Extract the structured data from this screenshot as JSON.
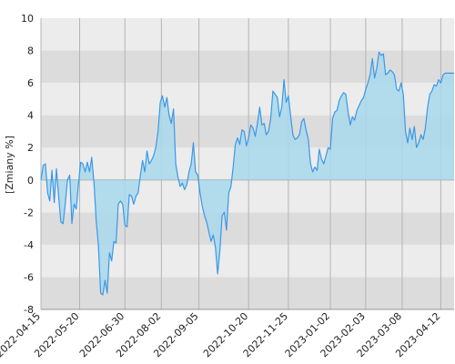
{
  "chart_data": {
    "type": "area",
    "ylabel": "[Zmiany %]",
    "ylim": [
      -8,
      10
    ],
    "yticks": [
      -8,
      -6,
      -4,
      -2,
      0,
      2,
      4,
      6,
      8,
      10
    ],
    "x_range": [
      "2022-04-15",
      "2023-04-24"
    ],
    "xtick_labels": [
      "2022-04-15",
      "2022-05-20",
      "2022-06-30",
      "2022-08-02",
      "2022-09-05",
      "2022-10-20",
      "2022-11-25",
      "2023-01-02",
      "2023-02-03",
      "2023-03-08",
      "2023-04-12"
    ],
    "grid": true,
    "line_color": "#3a98e8",
    "fill_color": "#a8d8ec",
    "band_colors": [
      "#ececec",
      "#dcdcdc"
    ],
    "series": [
      {
        "points": [
          [
            "2022-04-15",
            0.0
          ],
          [
            "2022-04-17",
            0.9
          ],
          [
            "2022-04-19",
            1.0
          ],
          [
            "2022-04-21",
            -0.8
          ],
          [
            "2022-04-23",
            -1.3
          ],
          [
            "2022-04-25",
            0.6
          ],
          [
            "2022-04-27",
            -1.4
          ],
          [
            "2022-04-29",
            0.7
          ],
          [
            "2022-05-01",
            -1.0
          ],
          [
            "2022-05-03",
            -2.6
          ],
          [
            "2022-05-05",
            -2.7
          ],
          [
            "2022-05-07",
            -1.5
          ],
          [
            "2022-05-09",
            0.0
          ],
          [
            "2022-05-11",
            0.3
          ],
          [
            "2022-05-13",
            -2.7
          ],
          [
            "2022-05-15",
            -1.5
          ],
          [
            "2022-05-17",
            -1.8
          ],
          [
            "2022-05-19",
            -0.2
          ],
          [
            "2022-05-21",
            1.1
          ],
          [
            "2022-05-23",
            1.0
          ],
          [
            "2022-05-25",
            0.5
          ],
          [
            "2022-05-27",
            1.1
          ],
          [
            "2022-05-29",
            0.5
          ],
          [
            "2022-05-31",
            1.4
          ],
          [
            "2022-06-02",
            -0.2
          ],
          [
            "2022-06-04",
            -2.5
          ],
          [
            "2022-06-06",
            -4.0
          ],
          [
            "2022-06-08",
            -7.0
          ],
          [
            "2022-06-10",
            -7.1
          ],
          [
            "2022-06-12",
            -6.2
          ],
          [
            "2022-06-14",
            -7.0
          ],
          [
            "2022-06-16",
            -4.5
          ],
          [
            "2022-06-18",
            -5.0
          ],
          [
            "2022-06-20",
            -3.8
          ],
          [
            "2022-06-22",
            -3.9
          ],
          [
            "2022-06-24",
            -1.5
          ],
          [
            "2022-06-26",
            -1.3
          ],
          [
            "2022-06-28",
            -1.5
          ],
          [
            "2022-06-30",
            -2.8
          ],
          [
            "2022-07-02",
            -2.9
          ],
          [
            "2022-07-04",
            -0.9
          ],
          [
            "2022-07-06",
            -1.0
          ],
          [
            "2022-07-08",
            -1.5
          ],
          [
            "2022-07-10",
            -1.0
          ],
          [
            "2022-07-12",
            -0.8
          ],
          [
            "2022-07-14",
            0.3
          ],
          [
            "2022-07-16",
            1.2
          ],
          [
            "2022-07-18",
            0.5
          ],
          [
            "2022-07-20",
            1.8
          ],
          [
            "2022-07-22",
            1.0
          ],
          [
            "2022-07-24",
            1.2
          ],
          [
            "2022-07-26",
            1.5
          ],
          [
            "2022-07-28",
            2.0
          ],
          [
            "2022-07-30",
            3.0
          ],
          [
            "2022-08-01",
            4.8
          ],
          [
            "2022-08-03",
            5.2
          ],
          [
            "2022-08-05",
            4.5
          ],
          [
            "2022-08-07",
            5.1
          ],
          [
            "2022-08-09",
            4.0
          ],
          [
            "2022-08-11",
            3.5
          ],
          [
            "2022-08-13",
            4.4
          ],
          [
            "2022-08-15",
            1.0
          ],
          [
            "2022-08-17",
            0.2
          ],
          [
            "2022-08-19",
            -0.4
          ],
          [
            "2022-08-21",
            -0.2
          ],
          [
            "2022-08-23",
            -0.6
          ],
          [
            "2022-08-25",
            -0.3
          ],
          [
            "2022-08-27",
            0.5
          ],
          [
            "2022-08-29",
            1.0
          ],
          [
            "2022-08-31",
            2.3
          ],
          [
            "2022-09-02",
            0.5
          ],
          [
            "2022-09-04",
            0.3
          ],
          [
            "2022-09-06",
            -0.8
          ],
          [
            "2022-09-08",
            -1.6
          ],
          [
            "2022-09-10",
            -2.2
          ],
          [
            "2022-09-12",
            -2.6
          ],
          [
            "2022-09-14",
            -3.2
          ],
          [
            "2022-09-16",
            -3.8
          ],
          [
            "2022-09-18",
            -3.4
          ],
          [
            "2022-09-20",
            -4.2
          ],
          [
            "2022-09-22",
            -5.8
          ],
          [
            "2022-09-24",
            -4.3
          ],
          [
            "2022-09-26",
            -2.2
          ],
          [
            "2022-09-28",
            -2.0
          ],
          [
            "2022-09-30",
            -3.1
          ],
          [
            "2022-10-02",
            -0.8
          ],
          [
            "2022-10-04",
            -0.4
          ],
          [
            "2022-10-06",
            0.8
          ],
          [
            "2022-10-08",
            2.2
          ],
          [
            "2022-10-10",
            2.6
          ],
          [
            "2022-10-12",
            2.2
          ],
          [
            "2022-10-14",
            3.1
          ],
          [
            "2022-10-16",
            3.0
          ],
          [
            "2022-10-18",
            2.1
          ],
          [
            "2022-10-20",
            2.6
          ],
          [
            "2022-10-22",
            3.4
          ],
          [
            "2022-10-24",
            3.2
          ],
          [
            "2022-10-26",
            2.7
          ],
          [
            "2022-10-28",
            3.5
          ],
          [
            "2022-10-30",
            4.5
          ],
          [
            "2022-11-01",
            3.4
          ],
          [
            "2022-11-03",
            3.5
          ],
          [
            "2022-11-05",
            2.8
          ],
          [
            "2022-11-07",
            3.0
          ],
          [
            "2022-11-09",
            3.8
          ],
          [
            "2022-11-11",
            5.5
          ],
          [
            "2022-11-13",
            5.3
          ],
          [
            "2022-11-15",
            5.1
          ],
          [
            "2022-11-17",
            3.9
          ],
          [
            "2022-11-19",
            4.5
          ],
          [
            "2022-11-21",
            6.2
          ],
          [
            "2022-11-23",
            4.8
          ],
          [
            "2022-11-25",
            5.2
          ],
          [
            "2022-11-27",
            4.0
          ],
          [
            "2022-11-29",
            2.8
          ],
          [
            "2022-12-01",
            2.5
          ],
          [
            "2022-12-03",
            2.6
          ],
          [
            "2022-12-05",
            2.8
          ],
          [
            "2022-12-07",
            3.6
          ],
          [
            "2022-12-09",
            3.8
          ],
          [
            "2022-12-11",
            3.1
          ],
          [
            "2022-12-13",
            2.5
          ],
          [
            "2022-12-15",
            1.0
          ],
          [
            "2022-12-17",
            0.5
          ],
          [
            "2022-12-19",
            0.8
          ],
          [
            "2022-12-21",
            0.6
          ],
          [
            "2022-12-23",
            1.9
          ],
          [
            "2022-12-25",
            1.3
          ],
          [
            "2022-12-27",
            1.0
          ],
          [
            "2022-12-29",
            1.5
          ],
          [
            "2022-12-31",
            2.0
          ],
          [
            "2023-01-02",
            1.9
          ],
          [
            "2023-01-04",
            3.8
          ],
          [
            "2023-01-06",
            4.2
          ],
          [
            "2023-01-08",
            4.3
          ],
          [
            "2023-01-10",
            4.9
          ],
          [
            "2023-01-12",
            5.2
          ],
          [
            "2023-01-14",
            5.4
          ],
          [
            "2023-01-16",
            5.3
          ],
          [
            "2023-01-18",
            4.2
          ],
          [
            "2023-01-20",
            3.4
          ],
          [
            "2023-01-22",
            3.9
          ],
          [
            "2023-01-24",
            3.7
          ],
          [
            "2023-01-26",
            4.3
          ],
          [
            "2023-01-28",
            4.6
          ],
          [
            "2023-01-30",
            4.9
          ],
          [
            "2023-02-01",
            5.1
          ],
          [
            "2023-02-03",
            5.6
          ],
          [
            "2023-02-05",
            6.0
          ],
          [
            "2023-02-07",
            6.5
          ],
          [
            "2023-02-09",
            7.5
          ],
          [
            "2023-02-11",
            6.3
          ],
          [
            "2023-02-13",
            6.9
          ],
          [
            "2023-02-15",
            7.9
          ],
          [
            "2023-02-17",
            7.7
          ],
          [
            "2023-02-19",
            7.8
          ],
          [
            "2023-02-21",
            6.5
          ],
          [
            "2023-02-23",
            6.6
          ],
          [
            "2023-02-25",
            6.8
          ],
          [
            "2023-02-27",
            6.7
          ],
          [
            "2023-03-01",
            6.5
          ],
          [
            "2023-03-03",
            5.6
          ],
          [
            "2023-03-05",
            5.5
          ],
          [
            "2023-03-07",
            6.0
          ],
          [
            "2023-03-09",
            5.3
          ],
          [
            "2023-03-11",
            3.0
          ],
          [
            "2023-03-13",
            2.3
          ],
          [
            "2023-03-15",
            3.2
          ],
          [
            "2023-03-17",
            2.5
          ],
          [
            "2023-03-19",
            3.3
          ],
          [
            "2023-03-21",
            2.0
          ],
          [
            "2023-03-23",
            2.3
          ],
          [
            "2023-03-25",
            2.8
          ],
          [
            "2023-03-27",
            2.5
          ],
          [
            "2023-03-29",
            3.2
          ],
          [
            "2023-03-31",
            4.5
          ],
          [
            "2023-04-02",
            5.3
          ],
          [
            "2023-04-04",
            5.5
          ],
          [
            "2023-04-06",
            5.9
          ],
          [
            "2023-04-08",
            5.8
          ],
          [
            "2023-04-10",
            6.2
          ],
          [
            "2023-04-12",
            6.0
          ],
          [
            "2023-04-14",
            6.5
          ],
          [
            "2023-04-16",
            6.6
          ],
          [
            "2023-04-18",
            6.6
          ],
          [
            "2023-04-20",
            6.6
          ],
          [
            "2023-04-22",
            6.6
          ],
          [
            "2023-04-24",
            6.6
          ]
        ]
      }
    ]
  }
}
